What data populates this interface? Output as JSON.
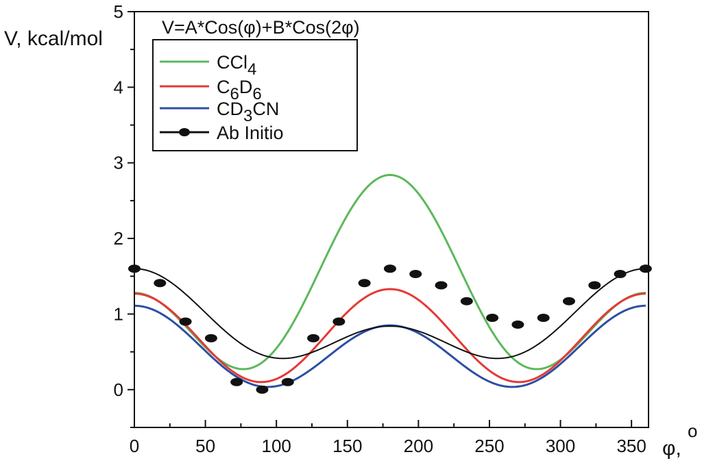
{
  "chart_data": {
    "type": "line",
    "formula": "V=A*Cos(φ)+B*Cos(2φ)",
    "ylabel": "V, kcal/mol",
    "xlabel": "φ,",
    "xlabel_superscript": "o",
    "xlim": [
      0,
      362
    ],
    "ylim": [
      -0.5,
      5
    ],
    "xticks": [
      0,
      50,
      100,
      150,
      200,
      250,
      300,
      350
    ],
    "xtick_labels": [
      "0",
      "50",
      "100",
      "150",
      "200",
      "250",
      "300",
      "350"
    ],
    "yticks": [
      0,
      1,
      2,
      3,
      4,
      5
    ],
    "ytick_labels": [
      "0",
      "1",
      "2",
      "3",
      "4",
      "5"
    ],
    "legend_position": "top-left",
    "series": [
      {
        "name": "CCl4",
        "label_main": "CCl",
        "label_sub": "4",
        "label_tail": "",
        "label_tail_sub": "",
        "color": "#5cb85c",
        "A": -0.78,
        "B": 0.85,
        "offset": 1.21,
        "markers": false
      },
      {
        "name": "C6D6",
        "label_main": "C",
        "label_sub": "6",
        "label_tail": "D",
        "label_tail_sub": "6",
        "color": "#e53935",
        "A": -0.03,
        "B": 0.6,
        "offset": 0.7,
        "markers": false
      },
      {
        "name": "CD3CN",
        "label_main": "CD",
        "label_sub": "3",
        "label_tail": "CN",
        "label_tail_sub": "",
        "color": "#2c4fa3",
        "A": 0.13,
        "B": 0.47,
        "offset": 0.51,
        "markers": false
      },
      {
        "name": "Ab Initio",
        "label_main": "Ab Initio",
        "label_sub": "",
        "label_tail": "",
        "label_tail_sub": "",
        "color": "#111111",
        "A": 0.38,
        "B": 0.38,
        "offset": 0.84,
        "markers": true,
        "points": [
          {
            "x": 0,
            "y": 1.6
          },
          {
            "x": 18,
            "y": 1.41
          },
          {
            "x": 36,
            "y": 0.9
          },
          {
            "x": 54,
            "y": 0.68
          },
          {
            "x": 72,
            "y": 0.1
          },
          {
            "x": 90,
            "y": 0.0
          },
          {
            "x": 108,
            "y": 0.1
          },
          {
            "x": 126,
            "y": 0.68
          },
          {
            "x": 144,
            "y": 0.9
          },
          {
            "x": 162,
            "y": 1.41
          },
          {
            "x": 180,
            "y": 1.6
          },
          {
            "x": 198,
            "y": 1.53
          },
          {
            "x": 216,
            "y": 1.38
          },
          {
            "x": 234,
            "y": 1.17
          },
          {
            "x": 252,
            "y": 0.95
          },
          {
            "x": 270,
            "y": 0.86
          },
          {
            "x": 288,
            "y": 0.95
          },
          {
            "x": 306,
            "y": 1.17
          },
          {
            "x": 324,
            "y": 1.38
          },
          {
            "x": 342,
            "y": 1.53
          },
          {
            "x": 360,
            "y": 1.6
          }
        ]
      }
    ]
  }
}
